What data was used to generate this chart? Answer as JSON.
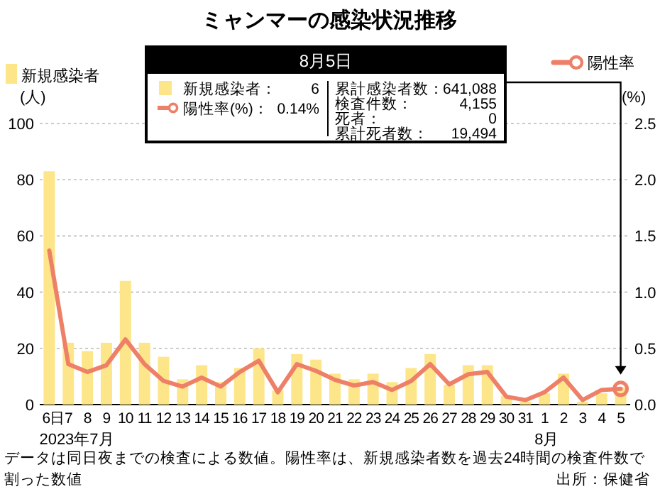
{
  "chart_data": {
    "type": "bar",
    "title": "ミャンマーの感染状況推移",
    "categories": [
      "6日",
      "7",
      "8",
      "9",
      "10",
      "11",
      "12",
      "13",
      "14",
      "15",
      "16",
      "17",
      "18",
      "19",
      "20",
      "21",
      "22",
      "23",
      "24",
      "25",
      "26",
      "27",
      "28",
      "29",
      "30",
      "31",
      "1",
      "2",
      "3",
      "4",
      "5"
    ],
    "series": [
      {
        "name": "新規感染者",
        "color": "#fde68a",
        "values": [
          83,
          22,
          19,
          22,
          44,
          22,
          17,
          9,
          14,
          8,
          13,
          20,
          5,
          18,
          16,
          11,
          9,
          11,
          8,
          13,
          18,
          7,
          14,
          14,
          3,
          1,
          4,
          11,
          1,
          4,
          6
        ]
      },
      {
        "name": "陽性率",
        "type": "line",
        "axis": "y2",
        "color": "#ee8068",
        "values": [
          1.37,
          0.36,
          0.29,
          0.35,
          0.58,
          0.36,
          0.21,
          0.16,
          0.24,
          0.16,
          0.29,
          0.39,
          0.11,
          0.36,
          0.3,
          0.22,
          0.17,
          0.2,
          0.13,
          0.21,
          0.36,
          0.18,
          0.27,
          0.29,
          0.07,
          0.04,
          0.11,
          0.24,
          0.04,
          0.13,
          0.14
        ]
      }
    ],
    "ylabel": "(人)",
    "y2label": "(%)",
    "ylim": [
      0,
      100
    ],
    "yticks": [
      0,
      20,
      40,
      60,
      80,
      100
    ],
    "y2lim": [
      0,
      2.5
    ],
    "y2ticks": [
      {
        "value": 0,
        "label": "0.0"
      },
      0.5,
      {
        "value": 1,
        "label": "1.0"
      },
      1.5,
      {
        "value": 2,
        "label": "2.0"
      },
      2.5
    ],
    "grid": "y",
    "legend": "top",
    "annotations": [
      "8月5日",
      "新規感染者：",
      "6",
      "陽性率(%)：",
      "0.14%",
      "累計感染者数：",
      "641,088",
      "検査件数：",
      "4,155",
      "死者：",
      "0",
      "累計死者数：",
      "19,494",
      "2023年7月",
      "8月",
      "データは同日夜までの検査による数値。陽性率は、新規感染者数を過去24時間の検査件数で割った数値",
      "出所：保健省"
    ]
  }
}
